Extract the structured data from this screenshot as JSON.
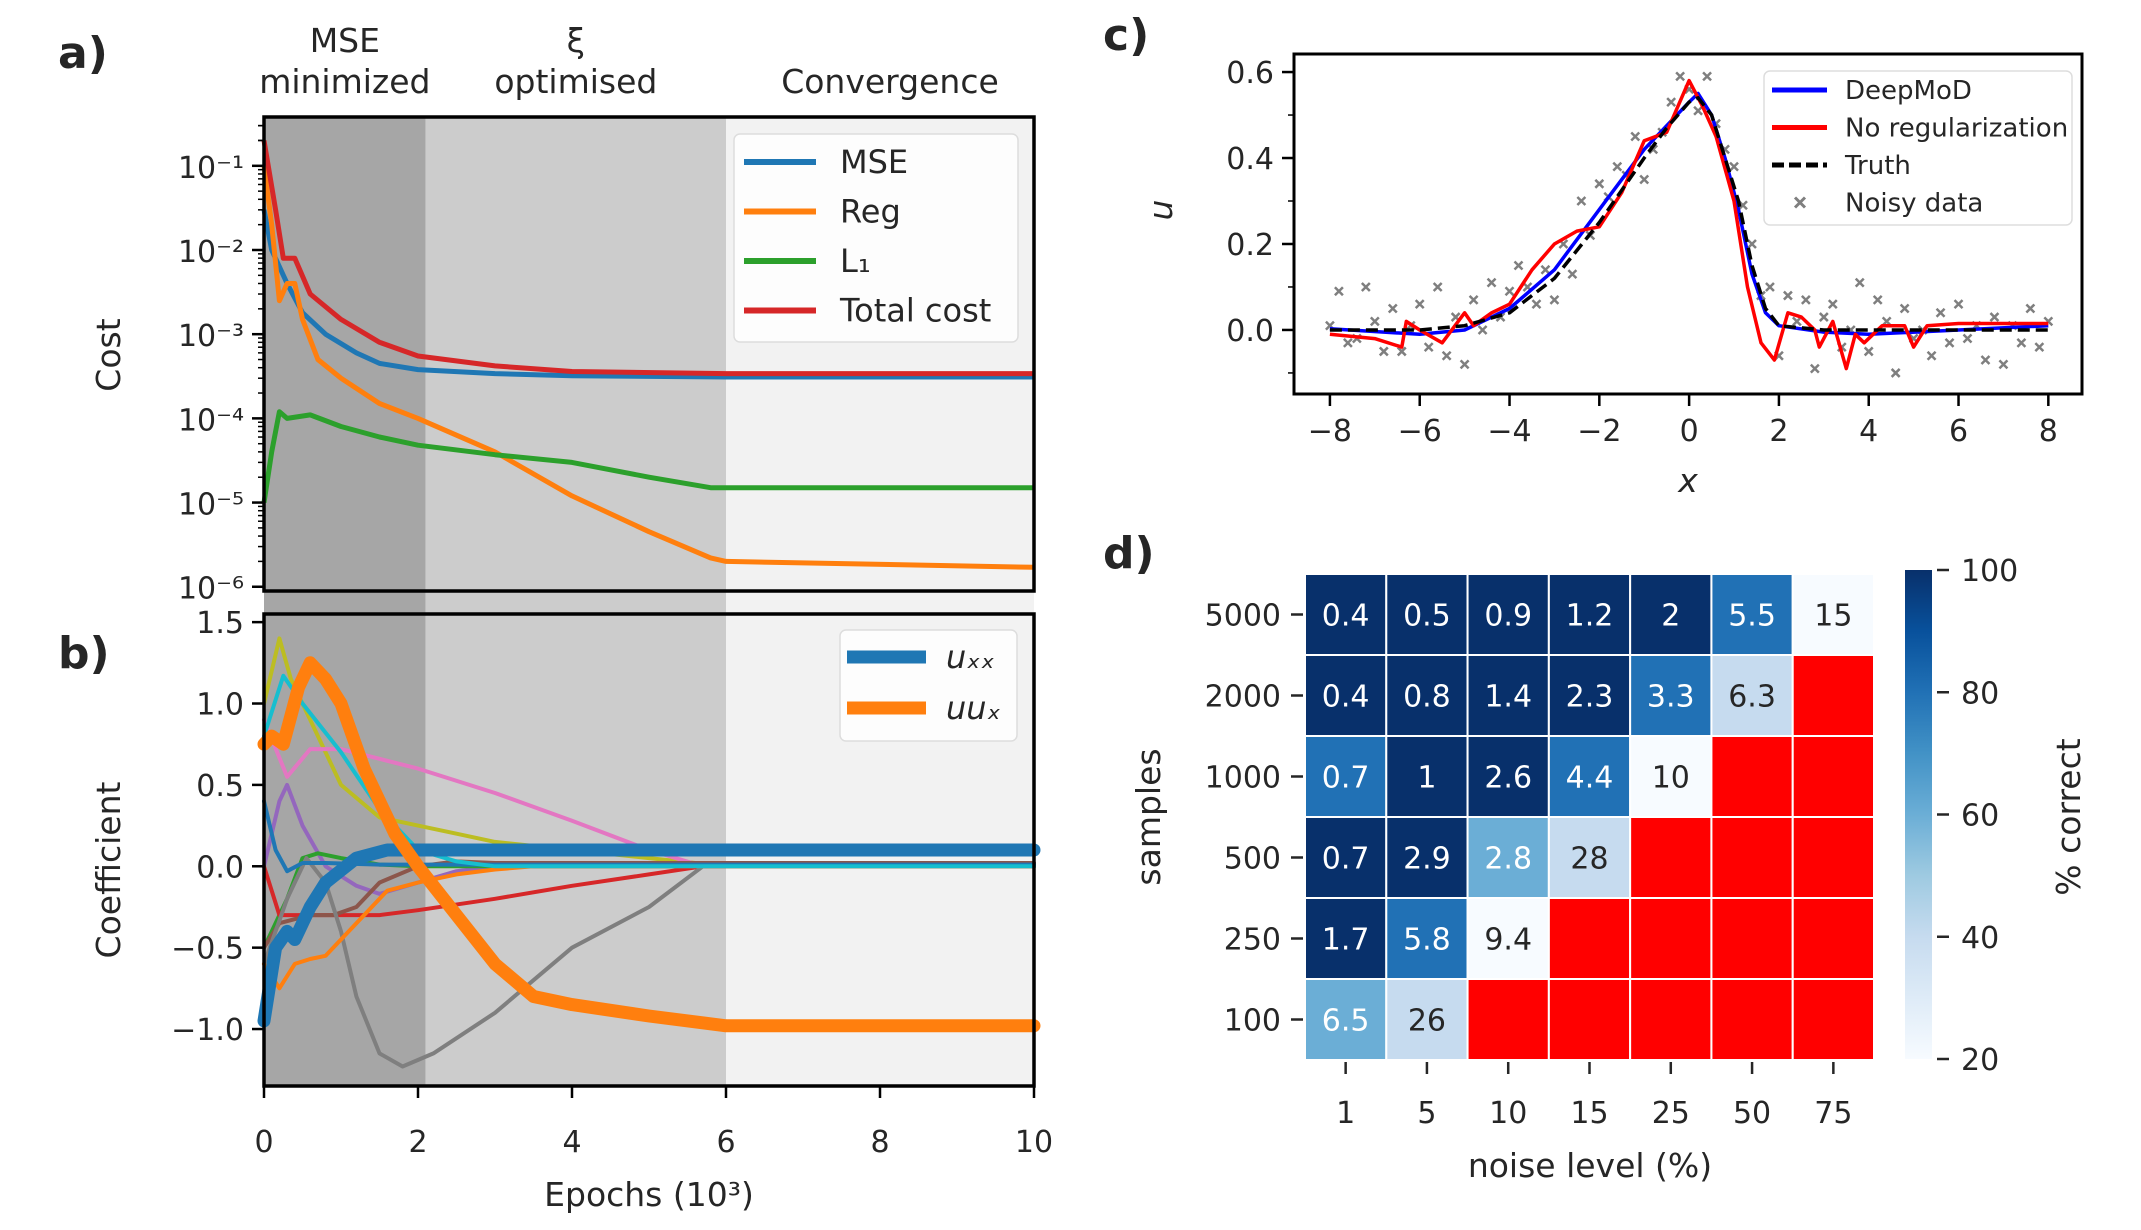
{
  "panels": {
    "a": "a)",
    "b": "b)",
    "c": "c)",
    "d": "d)"
  },
  "phases": [
    {
      "line1": "MSE",
      "line2": "minimized",
      "from": 0,
      "to": 2.1,
      "color": "#a6a6a6"
    },
    {
      "line1": "ξ",
      "line2": "optimised",
      "from": 2.1,
      "to": 6,
      "color": "#cccccc"
    },
    {
      "line1": "",
      "line2": "Convergence",
      "from": 6,
      "to": 10,
      "color": "#f2f2f2"
    }
  ],
  "chart_data": [
    {
      "panel": "a",
      "type": "line",
      "ylabel": "Cost",
      "yscale": "log",
      "xlim": [
        0,
        10
      ],
      "ylim": [
        8.9e-07,
        0.38
      ],
      "yticks": [
        0.1,
        0.01,
        0.001,
        0.0001,
        1e-05,
        1e-06
      ],
      "yticklabels": [
        "10⁻¹",
        "10⁻²",
        "10⁻³",
        "10⁻⁴",
        "10⁻⁵",
        "10⁻⁶"
      ],
      "legend": "top-right",
      "series": [
        {
          "name": "MSE",
          "color": "#1f77b4",
          "x": [
            0,
            0.1,
            0.3,
            0.5,
            0.8,
            1.2,
            1.5,
            2,
            3,
            4,
            6,
            10
          ],
          "y": [
            0.03,
            0.01,
            0.004,
            0.0018,
            0.001,
            0.0006,
            0.00045,
            0.00038,
            0.00034,
            0.00032,
            0.00031,
            0.00031
          ]
        },
        {
          "name": "Reg",
          "color": "#ff7f0e",
          "x": [
            0,
            0.1,
            0.2,
            0.3,
            0.4,
            0.5,
            0.7,
            1,
            1.5,
            2,
            3,
            4,
            5,
            5.8,
            6,
            10
          ],
          "y": [
            0.1,
            0.02,
            0.0025,
            0.004,
            0.004,
            0.0015,
            0.0005,
            0.0003,
            0.00015,
            0.0001,
            4e-05,
            1.2e-05,
            4.5e-06,
            2.2e-06,
            2e-06,
            1.7e-06
          ]
        },
        {
          "name": "L₁",
          "color": "#2ca02c",
          "x": [
            0,
            0.1,
            0.2,
            0.3,
            0.6,
            1,
            1.5,
            2,
            3,
            4,
            5,
            5.8,
            10
          ],
          "y": [
            1e-05,
            4e-05,
            0.00012,
            0.0001,
            0.00011,
            8e-05,
            6e-05,
            4.8e-05,
            3.7e-05,
            3e-05,
            2e-05,
            1.5e-05,
            1.5e-05
          ]
        },
        {
          "name": "Total cost",
          "color": "#d62728",
          "x": [
            0,
            0.15,
            0.25,
            0.4,
            0.6,
            1,
            1.5,
            2,
            3,
            4,
            6,
            10
          ],
          "y": [
            0.2,
            0.03,
            0.008,
            0.008,
            0.003,
            0.0015,
            0.0008,
            0.00055,
            0.00042,
            0.00036,
            0.00034,
            0.00034
          ]
        }
      ]
    },
    {
      "panel": "b",
      "type": "line",
      "xlabel": "Epochs (10³)",
      "ylabel": "Coefficient",
      "xlim": [
        0,
        10
      ],
      "ylim": [
        -1.35,
        1.55
      ],
      "xticks": [
        0,
        2,
        4,
        6,
        8,
        10
      ],
      "xticklabels": [
        "0",
        "2",
        "4",
        "6",
        "8",
        "10"
      ],
      "yticks": [
        1.5,
        1.0,
        0.5,
        0.0,
        -0.5,
        -1.0
      ],
      "yticklabels": [
        "1.5",
        "1.0",
        "0.5",
        "0.0",
        "−0.5",
        "−1.0"
      ],
      "legend": "top-right",
      "series": [
        {
          "color": "#bcbd22",
          "x": [
            0,
            0.2,
            0.35,
            0.6,
            1,
            1.5,
            2,
            2.5,
            3,
            4,
            5,
            6,
            10
          ],
          "y": [
            1.0,
            1.4,
            1.15,
            0.9,
            0.5,
            0.3,
            0.25,
            0.2,
            0.15,
            0.1,
            0.05,
            0,
            0
          ]
        },
        {
          "color": "#e377c2",
          "x": [
            0,
            0.3,
            0.6,
            1,
            2,
            3,
            4,
            5,
            5.7,
            10
          ],
          "y": [
            0.9,
            0.55,
            0.72,
            0.72,
            0.6,
            0.45,
            0.28,
            0.1,
            0,
            0
          ]
        },
        {
          "color": "#9467bd",
          "x": [
            0,
            0.2,
            0.3,
            0.5,
            0.8,
            1.2,
            1.5,
            2,
            2.5,
            3,
            10
          ],
          "y": [
            0,
            0.4,
            0.5,
            0.25,
            0.0,
            -0.12,
            -0.17,
            -0.1,
            -0.03,
            0,
            0
          ]
        },
        {
          "color": "#2ca02c",
          "x": [
            0,
            0.3,
            0.5,
            0.7,
            1,
            1.5,
            2,
            10
          ],
          "y": [
            -0.5,
            -0.2,
            0.05,
            0.08,
            0.05,
            0.01,
            0,
            0
          ]
        },
        {
          "color": "#d62728",
          "x": [
            0,
            0.2,
            0.5,
            1,
            1.5,
            2,
            3,
            4,
            5,
            5.7,
            10
          ],
          "y": [
            0,
            -0.3,
            -0.3,
            -0.3,
            -0.3,
            -0.27,
            -0.2,
            -0.12,
            -0.05,
            0,
            0
          ]
        },
        {
          "color": "#8c564b",
          "x": [
            0,
            0.2,
            0.6,
            0.9,
            1.2,
            1.5,
            2,
            2.5,
            3,
            10
          ],
          "y": [
            -0.5,
            -0.35,
            -0.3,
            -0.3,
            -0.25,
            -0.1,
            0,
            0.03,
            0.02,
            0.02
          ]
        },
        {
          "color": "#7f7f7f",
          "x": [
            0,
            0.3,
            0.55,
            0.8,
            1,
            1.2,
            1.5,
            1.8,
            2.2,
            3,
            3.5,
            4,
            5,
            5.7,
            10
          ],
          "y": [
            -0.6,
            -0.2,
            0.05,
            -0.1,
            -0.4,
            -0.8,
            -1.15,
            -1.23,
            -1.15,
            -0.9,
            -0.7,
            -0.5,
            -0.25,
            0,
            0
          ]
        },
        {
          "color": "#ff7f0e",
          "x": [
            0,
            0.2,
            0.4,
            0.6,
            0.8,
            1.2,
            1.6,
            2,
            2.5,
            3,
            3.5,
            10
          ],
          "y": [
            -0.6,
            -0.75,
            -0.6,
            -0.57,
            -0.55,
            -0.35,
            -0.15,
            -0.1,
            -0.05,
            -0.02,
            0,
            0
          ]
        },
        {
          "color": "#1f77b4",
          "x": [
            0,
            0.15,
            0.3,
            0.5,
            0.8,
            1.5,
            10
          ],
          "y": [
            0.4,
            0.1,
            -0.03,
            0.02,
            0.02,
            0.01,
            0.01
          ]
        },
        {
          "color": "#17becf",
          "x": [
            0,
            0.25,
            0.5,
            1,
            1.5,
            2,
            2.5,
            3,
            10
          ],
          "y": [
            0.8,
            1.17,
            1.0,
            0.7,
            0.35,
            0.1,
            0.03,
            0,
            0
          ]
        },
        {
          "name": "uₓₓ",
          "color": "#1f77b4",
          "thick": true,
          "x": [
            0,
            0.15,
            0.3,
            0.4,
            0.6,
            0.8,
            1.2,
            1.6,
            2,
            10
          ],
          "y": [
            -0.95,
            -0.5,
            -0.4,
            -0.45,
            -0.25,
            -0.1,
            0.05,
            0.1,
            0.1,
            0.1
          ]
        },
        {
          "name": "uuₓ",
          "color": "#ff7f0e",
          "thick": true,
          "x": [
            0,
            0.1,
            0.25,
            0.45,
            0.6,
            0.8,
            1.0,
            1.3,
            1.7,
            2,
            2.5,
            3,
            3.5,
            4,
            5,
            6,
            10
          ],
          "y": [
            0.75,
            0.8,
            0.75,
            1.1,
            1.25,
            1.15,
            1.0,
            0.6,
            0.2,
            0.0,
            -0.3,
            -0.6,
            -0.8,
            -0.85,
            -0.92,
            -0.98,
            -0.98
          ]
        }
      ]
    },
    {
      "panel": "c",
      "type": "line",
      "xlabel": "x",
      "ylabel": "u",
      "xlim": [
        -8.8,
        8.75
      ],
      "ylim": [
        -0.149,
        0.642
      ],
      "xticks": [
        -8,
        -6,
        -4,
        -2,
        0,
        2,
        4,
        6,
        8
      ],
      "xticklabels": [
        "−8",
        "−6",
        "−4",
        "−2",
        "0",
        "2",
        "4",
        "6",
        "8"
      ],
      "yticks": [
        0.6,
        0.4,
        0.2,
        0.0
      ],
      "yticklabels": [
        "0.6",
        "0.4",
        "0.2",
        "0.0"
      ],
      "legend": "top-right",
      "series": [
        {
          "name": "DeepMoD",
          "color": "#0000ff",
          "style": "solid",
          "x": [
            -8,
            -6,
            -5,
            -4,
            -3,
            -2,
            -1,
            0,
            0.2,
            0.5,
            0.8,
            1.1,
            1.4,
            1.7,
            2,
            3,
            4,
            6,
            8
          ],
          "y": [
            0.003,
            -0.01,
            0.0,
            0.05,
            0.14,
            0.28,
            0.42,
            0.53,
            0.55,
            0.5,
            0.4,
            0.28,
            0.13,
            0.04,
            0.01,
            -0.005,
            -0.01,
            0,
            0.01
          ]
        },
        {
          "name": "No regularization",
          "color": "#ff0000",
          "style": "solid",
          "x": [
            -8,
            -7,
            -6.4,
            -6.3,
            -6,
            -5.5,
            -5,
            -4.8,
            -4.4,
            -4,
            -3.5,
            -3,
            -2.5,
            -2,
            -1.5,
            -1,
            -0.5,
            0,
            0.3,
            0.6,
            1,
            1.3,
            1.6,
            1.9,
            2.2,
            2.5,
            2.8,
            2.9,
            3.2,
            3.5,
            3.7,
            3.9,
            4.3,
            4.8,
            5,
            5.3,
            6,
            8
          ],
          "y": [
            -0.01,
            -0.02,
            -0.04,
            0.02,
            0.0,
            -0.03,
            0.04,
            0.01,
            0.04,
            0.06,
            0.14,
            0.2,
            0.23,
            0.24,
            0.32,
            0.44,
            0.46,
            0.58,
            0.52,
            0.45,
            0.3,
            0.1,
            -0.03,
            -0.07,
            0.04,
            0.03,
            0.0,
            -0.04,
            0.02,
            -0.09,
            -0.01,
            -0.03,
            0.01,
            0.01,
            -0.04,
            0.01,
            0.015,
            0.015
          ]
        },
        {
          "name": "Truth",
          "color": "#000000",
          "style": "dashed",
          "x": [
            -8,
            -6,
            -5,
            -4,
            -3,
            -2,
            -1,
            -0.5,
            0,
            0.2,
            0.5,
            0.8,
            1.1,
            1.4,
            1.7,
            2,
            3,
            8
          ],
          "y": [
            0,
            0,
            0.01,
            0.04,
            0.12,
            0.25,
            0.4,
            0.47,
            0.53,
            0.54,
            0.5,
            0.4,
            0.3,
            0.15,
            0.05,
            0.01,
            0,
            0
          ]
        },
        {
          "name": "Noisy data",
          "color": "#7f7f7f",
          "style": "marker-x",
          "x": [
            -8.0,
            -7.8,
            -7.6,
            -7.4,
            -7.2,
            -7.0,
            -6.8,
            -6.6,
            -6.4,
            -6.2,
            -6.0,
            -5.8,
            -5.6,
            -5.4,
            -5.2,
            -5.0,
            -4.8,
            -4.6,
            -4.4,
            -4.2,
            -4.0,
            -3.8,
            -3.6,
            -3.4,
            -3.2,
            -3.0,
            -2.8,
            -2.6,
            -2.4,
            -2.2,
            -2.0,
            -1.8,
            -1.6,
            -1.4,
            -1.2,
            -1.0,
            -0.8,
            -0.6,
            -0.4,
            -0.2,
            0.0,
            0.2,
            0.4,
            0.6,
            0.8,
            1.0,
            1.2,
            1.4,
            1.6,
            1.8,
            2.0,
            2.2,
            2.4,
            2.6,
            2.8,
            3.0,
            3.2,
            3.4,
            3.6,
            3.8,
            4.0,
            4.2,
            4.4,
            4.6,
            4.8,
            5.0,
            5.2,
            5.4,
            5.6,
            5.8,
            6.0,
            6.2,
            6.4,
            6.6,
            6.8,
            7.0,
            7.2,
            7.4,
            7.6,
            7.8,
            8.0
          ],
          "y": [
            0.01,
            0.09,
            -0.03,
            -0.02,
            0.1,
            0.02,
            -0.05,
            0.05,
            -0.05,
            0.01,
            0.06,
            -0.04,
            0.1,
            -0.06,
            0.03,
            -0.08,
            0.07,
            0.0,
            0.11,
            0.03,
            0.09,
            0.15,
            0.1,
            0.06,
            0.14,
            0.07,
            0.2,
            0.13,
            0.3,
            0.22,
            0.34,
            0.31,
            0.38,
            0.36,
            0.45,
            0.35,
            0.42,
            0.46,
            0.53,
            0.59,
            0.56,
            0.51,
            0.59,
            0.48,
            0.42,
            0.38,
            0.29,
            0.2,
            0.08,
            0.1,
            -0.06,
            0.08,
            0.02,
            0.07,
            -0.09,
            0.03,
            0.06,
            -0.04,
            0.0,
            0.11,
            -0.05,
            0.07,
            0.02,
            -0.1,
            0.05,
            -0.02,
            0.0,
            -0.06,
            0.04,
            -0.03,
            0.06,
            -0.02,
            0.01,
            -0.07,
            0.03,
            -0.08,
            0.01,
            -0.03,
            0.05,
            -0.04,
            0.02
          ]
        }
      ]
    },
    {
      "panel": "d",
      "type": "heatmap",
      "xlabel": "noise level (%)",
      "ylabel": "samples",
      "colorbar_label": "% correct",
      "colorbar_range": [
        20,
        100
      ],
      "colorbar_ticks": [
        "100",
        "80",
        "60",
        "40",
        "20"
      ],
      "colorbar_tick_values": [
        100,
        80,
        60,
        40,
        20
      ],
      "failed_color": "#ff0000",
      "colormap": [
        "#f7fbff",
        "#deebf7",
        "#c6dbef",
        "#9ecae1",
        "#6baed6",
        "#4292c6",
        "#2171b5",
        "#08519c",
        "#08306b"
      ],
      "columns": [
        "1",
        "5",
        "10",
        "15",
        "25",
        "50",
        "75"
      ],
      "rows": [
        "5000",
        "2000",
        "1000",
        "500",
        "250",
        "100"
      ],
      "annotations": [
        [
          "0.4",
          "0.5",
          "0.9",
          "1.2",
          "2",
          "5.5",
          "15"
        ],
        [
          "0.4",
          "0.8",
          "1.4",
          "2.3",
          "3.3",
          "6.3",
          ""
        ],
        [
          "0.7",
          "1",
          "2.6",
          "4.4",
          "10",
          "",
          ""
        ],
        [
          "0.7",
          "2.9",
          "2.8",
          "28",
          "",
          "",
          ""
        ],
        [
          "1.7",
          "5.8",
          "9.4",
          "",
          "",
          "",
          ""
        ],
        [
          "6.5",
          "26",
          "",
          "",
          "",
          "",
          ""
        ]
      ],
      "percent_correct": [
        [
          100,
          100,
          100,
          100,
          100,
          80,
          20
        ],
        [
          100,
          100,
          100,
          100,
          80,
          40,
          null
        ],
        [
          80,
          100,
          100,
          80,
          20,
          null,
          null
        ],
        [
          100,
          100,
          60,
          40,
          null,
          null,
          null
        ],
        [
          100,
          80,
          20,
          null,
          null,
          null,
          null
        ],
        [
          60,
          40,
          null,
          null,
          null,
          null,
          null
        ]
      ]
    }
  ]
}
